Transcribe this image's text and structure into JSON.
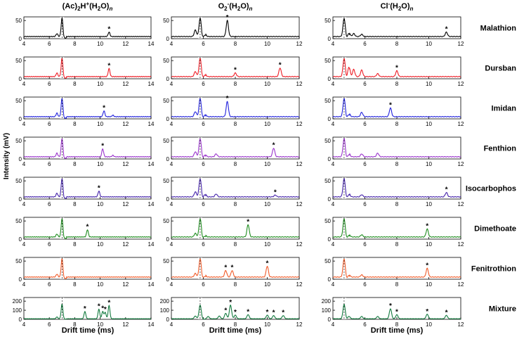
{
  "figure": {
    "ylabel": "Intensity (mV)",
    "xlabel": "Drift time (ms)",
    "column_titles": [
      {
        "main": "(Ac)",
        "sub1": "2",
        "mid": "H",
        "sup": "+",
        "rest": "(H",
        "sub2": "2",
        "rest2": "O)",
        "subn": "n"
      },
      {
        "main": "O",
        "sub1": "2",
        "mid": "",
        "sup": "-",
        "rest": "(H",
        "sub2": "2",
        "rest2": "O)",
        "subn": "n"
      },
      {
        "main": "Cl",
        "sub1": "",
        "mid": "",
        "sup": "-",
        "rest": "(H",
        "sub2": "2",
        "rest2": "O)",
        "subn": "n"
      }
    ],
    "compounds": [
      "Malathion",
      "Dursban",
      "Imidan",
      "Fenthion",
      "Isocarbophos",
      "Dimethoate",
      "Fenitrothion",
      "Mixture"
    ],
    "colors": [
      "#000000",
      "#ee1c25",
      "#2222dd",
      "#9933cc",
      "#4422aa",
      "#1e8c1e",
      "#f05a28",
      "#127a3e"
    ],
    "peak_marker": "*",
    "yticks": {
      "normal": [
        0,
        50
      ],
      "mixture": [
        0,
        100,
        200
      ]
    },
    "reactant_ion_peak_ms": [
      7.0,
      5.8,
      4.7
    ]
  },
  "chart_data": [
    {
      "type": "line",
      "title": "(Ac)2H+(H2O)n",
      "xlabel": "Drift time (ms)",
      "ylabel": "Intensity (mV)",
      "xlim": [
        4,
        14
      ],
      "xticks": [
        4,
        6,
        8,
        10,
        12,
        14
      ],
      "rip": 7.0,
      "series": [
        {
          "name": "Malathion",
          "peaks": [
            [
              6.6,
              8
            ],
            [
              7.0,
              50
            ],
            [
              10.7,
              12
            ]
          ],
          "marked": [
            10.7
          ]
        },
        {
          "name": "Dursban",
          "peaks": [
            [
              6.6,
              10
            ],
            [
              7.0,
              50
            ],
            [
              10.7,
              22
            ]
          ],
          "marked": [
            10.7
          ]
        },
        {
          "name": "Imidan",
          "peaks": [
            [
              6.6,
              10
            ],
            [
              7.0,
              50
            ],
            [
              10.3,
              16
            ],
            [
              11.0,
              4
            ]
          ],
          "marked": [
            10.3
          ]
        },
        {
          "name": "Fenthion",
          "peaks": [
            [
              6.6,
              10
            ],
            [
              7.0,
              50
            ],
            [
              10.2,
              22
            ],
            [
              11.0,
              4
            ]
          ],
          "marked": [
            10.2
          ]
        },
        {
          "name": "Isocarbophos",
          "peaks": [
            [
              6.6,
              10
            ],
            [
              7.0,
              50
            ],
            [
              9.9,
              16
            ]
          ],
          "marked": [
            9.9
          ]
        },
        {
          "name": "Dimethoate",
          "peaks": [
            [
              6.6,
              8
            ],
            [
              7.0,
              50
            ],
            [
              9.0,
              20
            ]
          ],
          "marked": [
            9.0
          ]
        },
        {
          "name": "Fenitrothion",
          "peaks": [
            [
              6.6,
              8
            ],
            [
              7.0,
              50
            ]
          ],
          "marked": []
        },
        {
          "name": "Mixture",
          "peaks": [
            [
              6.6,
              20
            ],
            [
              7.0,
              160
            ],
            [
              8.8,
              80
            ],
            [
              9.9,
              105
            ],
            [
              10.2,
              80
            ],
            [
              10.4,
              70
            ],
            [
              10.7,
              145
            ]
          ],
          "marked": [
            8.8,
            9.9,
            10.2,
            10.4,
            10.7
          ]
        }
      ]
    },
    {
      "type": "line",
      "title": "O2-(H2O)n",
      "xlabel": "Drift time (ms)",
      "ylabel": "Intensity (mV)",
      "xlim": [
        4,
        12
      ],
      "xticks": [
        4,
        6,
        8,
        10,
        12
      ],
      "rip": 5.8,
      "series": [
        {
          "name": "Malathion",
          "peaks": [
            [
              5.5,
              18
            ],
            [
              5.8,
              50
            ],
            [
              6.1,
              8
            ],
            [
              7.5,
              44
            ]
          ],
          "marked": [
            7.5
          ]
        },
        {
          "name": "Dursban",
          "peaks": [
            [
              5.5,
              14
            ],
            [
              5.8,
              50
            ],
            [
              6.1,
              8
            ],
            [
              8.0,
              10
            ],
            [
              10.8,
              24
            ]
          ],
          "marked": [
            8.0,
            10.8
          ]
        },
        {
          "name": "Imidan",
          "peaks": [
            [
              5.5,
              14
            ],
            [
              5.8,
              50
            ],
            [
              6.1,
              8
            ],
            [
              7.5,
              42
            ]
          ],
          "marked": [
            7.5
          ]
        },
        {
          "name": "Fenthion",
          "peaks": [
            [
              5.5,
              14
            ],
            [
              5.8,
              50
            ],
            [
              6.1,
              8
            ],
            [
              6.8,
              8
            ],
            [
              10.4,
              24
            ]
          ],
          "marked": [
            10.4
          ]
        },
        {
          "name": "Isocarbophos",
          "peaks": [
            [
              5.5,
              14
            ],
            [
              5.8,
              50
            ],
            [
              6.1,
              10
            ],
            [
              6.8,
              8
            ],
            [
              10.5,
              5
            ]
          ],
          "marked": [
            10.5
          ]
        },
        {
          "name": "Dimethoate",
          "peaks": [
            [
              5.5,
              10
            ],
            [
              5.8,
              50
            ],
            [
              6.1,
              6
            ],
            [
              8.8,
              34
            ]
          ],
          "marked": [
            8.8
          ]
        },
        {
          "name": "Fenitrothion",
          "peaks": [
            [
              5.5,
              10
            ],
            [
              5.8,
              50
            ],
            [
              6.1,
              6
            ],
            [
              7.4,
              18
            ],
            [
              7.8,
              18
            ],
            [
              10.0,
              30
            ]
          ],
          "marked": [
            7.4,
            7.8,
            10.0
          ]
        },
        {
          "name": "Mixture",
          "peaks": [
            [
              5.5,
              30
            ],
            [
              5.8,
              150
            ],
            [
              6.3,
              25
            ],
            [
              7.0,
              30
            ],
            [
              7.4,
              60
            ],
            [
              7.7,
              150
            ],
            [
              8.0,
              40
            ],
            [
              8.8,
              45
            ],
            [
              10.0,
              40
            ],
            [
              10.4,
              35
            ],
            [
              11.0,
              35
            ]
          ],
          "marked": [
            7.4,
            7.7,
            8.0,
            8.8,
            10.0,
            10.4,
            11.0
          ]
        }
      ]
    },
    {
      "type": "line",
      "title": "Cl-(H2O)n",
      "xlabel": "Drift time (ms)",
      "ylabel": "Intensity (mV)",
      "xlim": [
        4,
        12
      ],
      "xticks": [
        4,
        6,
        8,
        10,
        12
      ],
      "rip": 4.7,
      "series": [
        {
          "name": "Malathion",
          "peaks": [
            [
              4.7,
              50
            ],
            [
              5.0,
              12
            ],
            [
              5.3,
              8
            ],
            [
              5.8,
              6
            ],
            [
              11.1,
              12
            ]
          ],
          "marked": [
            11.1
          ]
        },
        {
          "name": "Dursban",
          "peaks": [
            [
              4.7,
              50
            ],
            [
              5.0,
              30
            ],
            [
              5.3,
              20
            ],
            [
              5.8,
              18
            ],
            [
              6.8,
              8
            ],
            [
              8.0,
              16
            ]
          ],
          "marked": [
            8.0
          ]
        },
        {
          "name": "Imidan",
          "peaks": [
            [
              4.7,
              50
            ],
            [
              5.0,
              10
            ],
            [
              5.8,
              12
            ],
            [
              7.6,
              24
            ]
          ],
          "marked": [
            7.6
          ]
        },
        {
          "name": "Fenthion",
          "peaks": [
            [
              4.7,
              50
            ],
            [
              5.0,
              10
            ],
            [
              5.8,
              8
            ],
            [
              6.8,
              10
            ]
          ],
          "marked": []
        },
        {
          "name": "Isocarbophos",
          "peaks": [
            [
              4.7,
              50
            ],
            [
              5.0,
              10
            ],
            [
              5.8,
              6
            ],
            [
              11.1,
              12
            ]
          ],
          "marked": [
            11.1
          ]
        },
        {
          "name": "Dimethoate",
          "peaks": [
            [
              4.7,
              50
            ],
            [
              5.0,
              8
            ],
            [
              5.8,
              6
            ],
            [
              9.9,
              22
            ]
          ],
          "marked": [
            9.9
          ]
        },
        {
          "name": "Fenitrothion",
          "peaks": [
            [
              4.7,
              50
            ],
            [
              5.0,
              8
            ],
            [
              5.8,
              6
            ],
            [
              9.9,
              24
            ]
          ],
          "marked": [
            9.9
          ]
        },
        {
          "name": "Mixture",
          "peaks": [
            [
              4.7,
              160
            ],
            [
              5.0,
              30
            ],
            [
              5.8,
              25
            ],
            [
              6.8,
              25
            ],
            [
              7.6,
              110
            ],
            [
              8.0,
              45
            ],
            [
              9.9,
              50
            ],
            [
              11.1,
              38
            ]
          ],
          "marked": [
            7.6,
            8.0,
            9.9,
            11.1
          ]
        }
      ]
    }
  ]
}
